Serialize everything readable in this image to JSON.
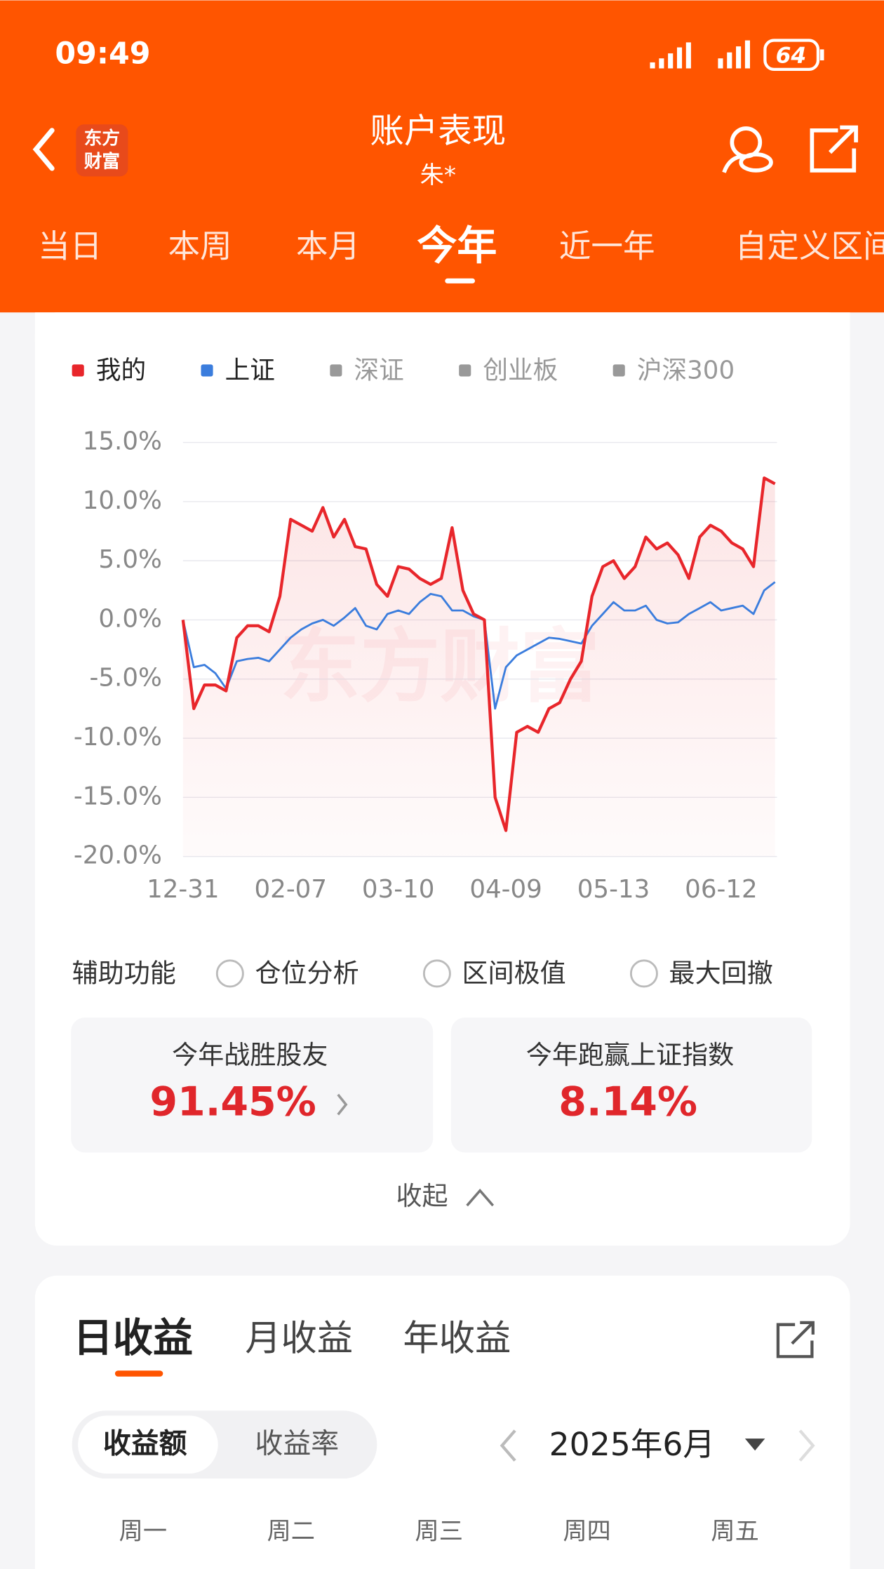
{
  "status_bar": {
    "time": "09:49",
    "battery": "64"
  },
  "header": {
    "logo": [
      "东方",
      "财富"
    ],
    "title": "账户表现",
    "subtitle": "朱*"
  },
  "tabs": [
    "当日",
    "本周",
    "本月",
    "今年",
    "近一年",
    "自定义区间"
  ],
  "chart_data": {
    "type": "line",
    "watermark": "东方财富",
    "inactive_legend": [
      {
        "name": "深证",
        "color": "#999999"
      },
      {
        "name": "创业板",
        "color": "#999999"
      },
      {
        "name": "沪深300",
        "color": "#999999"
      }
    ],
    "categories": [
      "12-31",
      null,
      null,
      null,
      null,
      null,
      null,
      null,
      null,
      null,
      "02-07",
      null,
      null,
      null,
      null,
      null,
      null,
      null,
      null,
      null,
      "03-10",
      null,
      null,
      null,
      null,
      null,
      null,
      null,
      null,
      null,
      "04-09",
      null,
      null,
      null,
      null,
      null,
      null,
      null,
      null,
      null,
      "05-13",
      null,
      null,
      null,
      null,
      null,
      null,
      null,
      null,
      null,
      "06-12",
      null,
      null,
      null,
      null,
      null
    ],
    "series": [
      {
        "name": "我的",
        "color": "#e8262b",
        "values": [
          0,
          -7.5,
          -5.5,
          -5.5,
          -6,
          -1.5,
          -0.5,
          -0.5,
          -1,
          2,
          8.5,
          8,
          7.5,
          9.5,
          7,
          8.5,
          6.2,
          6,
          3,
          2,
          4.5,
          4.3,
          3.5,
          3,
          3.5,
          7.8,
          2.5,
          0.5,
          0,
          -15,
          -17.8,
          -9.5,
          -9,
          -9.5,
          -7.5,
          -7,
          -5,
          -3.5,
          2,
          4.5,
          5,
          3.5,
          4.5,
          7,
          6,
          6.5,
          5.5,
          3.5,
          7,
          8,
          7.5,
          6.5,
          6,
          4.5,
          12,
          11.5
        ]
      },
      {
        "name": "上证",
        "color": "#3b7ddd",
        "values": [
          0,
          -4,
          -3.8,
          -4.5,
          -5.8,
          -3.5,
          -3.3,
          -3.2,
          -3.5,
          -2.5,
          -1.5,
          -0.8,
          -0.3,
          0,
          -0.5,
          0.2,
          1,
          -0.5,
          -0.8,
          0.5,
          0.8,
          0.5,
          1.5,
          2.2,
          2,
          0.8,
          0.8,
          0.3,
          0,
          -7.5,
          -4,
          -3,
          -2.5,
          -2,
          -1.5,
          -1.6,
          -1.8,
          -2,
          -0.5,
          0.5,
          1.5,
          0.8,
          0.8,
          1.2,
          0,
          -0.3,
          -0.2,
          0.5,
          1,
          1.5,
          0.8,
          1,
          1.2,
          0.5,
          2.5,
          3.2
        ]
      }
    ],
    "ylim": [
      -20,
      15
    ],
    "yticks": [
      {
        "value": 15,
        "label": "15.0%"
      },
      {
        "value": 10,
        "label": "10.0%"
      },
      {
        "value": 5,
        "label": "5.0%"
      },
      {
        "value": 0,
        "label": "0.0%"
      },
      {
        "value": -5,
        "label": "-5.0%"
      },
      {
        "value": -10,
        "label": "-10.0%"
      },
      {
        "value": -15,
        "label": "-15.0%"
      },
      {
        "value": -20,
        "label": "-20.0%"
      }
    ],
    "grid": true
  },
  "assist": {
    "label": "辅助功能",
    "options": [
      "仓位分析",
      "区间极值",
      "最大回撤"
    ]
  },
  "stats": [
    {
      "title": "今年战胜股友",
      "value": "91.45%"
    },
    {
      "title": "今年跑赢上证指数",
      "value": "8.14%"
    }
  ],
  "collapse": "收起",
  "earnings": {
    "tabs": [
      "日收益",
      "月收益",
      "年收益"
    ],
    "modes": [
      "收益额",
      "收益率"
    ],
    "month": "2025年6月",
    "weekdays": [
      "周一",
      "周二",
      "周三",
      "周四",
      "周五"
    ]
  }
}
